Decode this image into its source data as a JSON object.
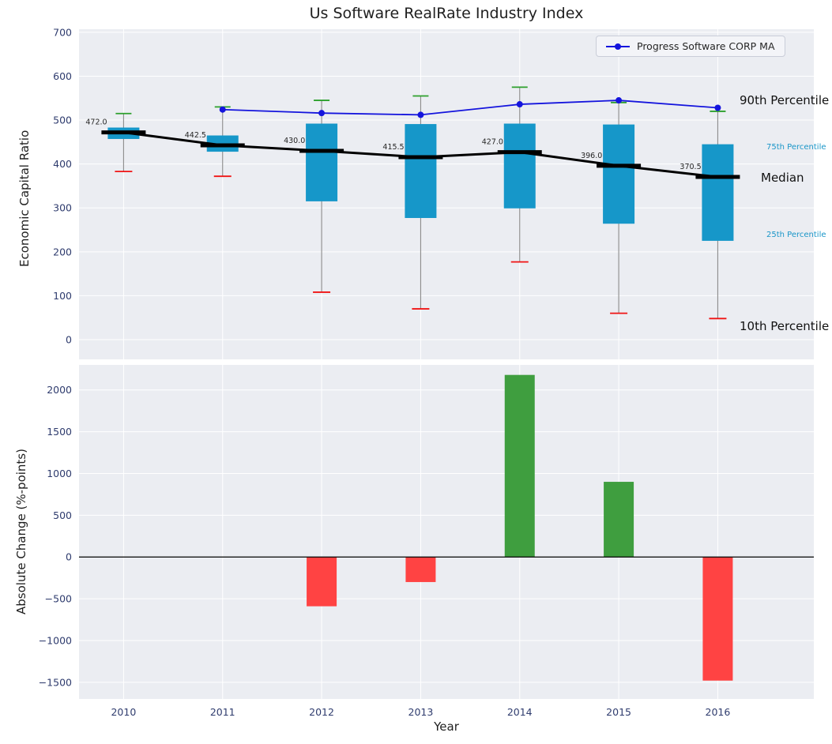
{
  "title": "Us Software RealRate Industry Index",
  "legend_label": "Progress Software CORP MA",
  "top_panel": {
    "ylabel": "Economic Capital Ratio",
    "annotations": {
      "p90": "90th Percentile",
      "p75": "75th Percentile",
      "median": "Median",
      "p25": "25th Percentile",
      "p10": "10th Percentile"
    }
  },
  "bottom_panel": {
    "ylabel": "Absolute Change (%-points)",
    "xlabel": "Year"
  },
  "colors": {
    "box_fill": "#1697c9",
    "median_line": "#000000",
    "ma_line": "#1414dd",
    "cap_high": "#2ca02c",
    "cap_low": "#f01414",
    "bar_positive": "#3f9e3f",
    "bar_negative": "#ff4343",
    "panel_bg": "#ebedf2",
    "grid": "#ffffff",
    "tick_label": "#2f3c6e",
    "text": "#262626"
  },
  "chart_data": [
    {
      "type": "boxplot",
      "title": "Us Software RealRate Industry Index",
      "ylabel": "Economic Capital Ratio",
      "ylim": [
        -45,
        707
      ],
      "yticks": [
        0,
        100,
        200,
        300,
        400,
        500,
        600,
        700
      ],
      "grid": true,
      "legend_position": "upper right",
      "categories": [
        2010,
        2011,
        2012,
        2013,
        2014,
        2015,
        2016
      ],
      "median": [
        472.0,
        442.5,
        430.0,
        415.5,
        427.0,
        396.0,
        370.5
      ],
      "median_labels": [
        "472.0",
        "442.5",
        "430.0",
        "415.5",
        "427.0",
        "396.0",
        "370.5"
      ],
      "q1": [
        457,
        428,
        315,
        277,
        299,
        264,
        225
      ],
      "q3": [
        483,
        465,
        492,
        491,
        492,
        490,
        445
      ],
      "percentile_90": [
        515,
        530,
        545,
        555,
        575,
        540,
        520
      ],
      "percentile_10": [
        383,
        372,
        108,
        70,
        177,
        60,
        48
      ],
      "series": [
        {
          "name": "Progress Software CORP MA",
          "type": "line",
          "x": [
            2011,
            2012,
            2013,
            2014,
            2015,
            2016
          ],
          "y": [
            524,
            516,
            512,
            536,
            545,
            528
          ]
        }
      ]
    },
    {
      "type": "bar",
      "ylabel": "Absolute Change (%-points)",
      "xlabel": "Year",
      "ylim": [
        -1700,
        2300
      ],
      "yticks": [
        -1500,
        -1000,
        -500,
        0,
        500,
        1000,
        1500,
        2000
      ],
      "grid": true,
      "categories": [
        2010,
        2011,
        2012,
        2013,
        2014,
        2015,
        2016
      ],
      "values": [
        0,
        0,
        -590,
        -300,
        2180,
        900,
        -1480
      ]
    }
  ]
}
